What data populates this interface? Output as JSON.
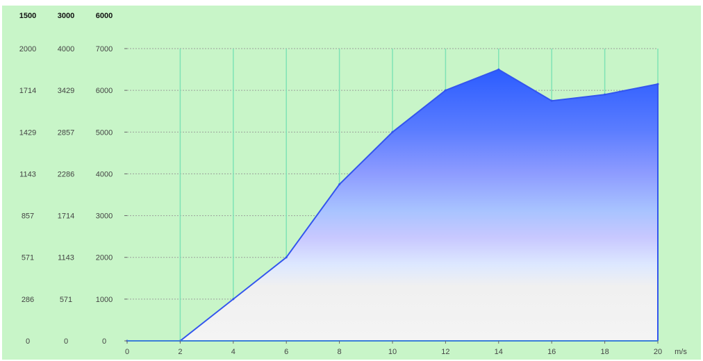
{
  "chart_data": {
    "type": "area",
    "x": [
      0,
      2,
      4,
      6,
      8,
      10,
      12,
      14,
      16,
      18,
      20
    ],
    "values": [
      0,
      0,
      1000,
      2000,
      3750,
      5000,
      6000,
      6500,
      5750,
      5900,
      6150
    ],
    "xlabel": "m/s",
    "ylim": [
      0,
      7000
    ],
    "x_ticks": [
      "0",
      "2",
      "4",
      "6",
      "8",
      "10",
      "12",
      "14",
      "16",
      "18",
      "20"
    ],
    "y_axes": [
      {
        "header": "1500",
        "ticks": [
          "0",
          "286",
          "571",
          "857",
          "1143",
          "1429",
          "1714",
          "2000"
        ]
      },
      {
        "header": "3000",
        "ticks": [
          "0",
          "571",
          "1143",
          "1714",
          "2286",
          "2857",
          "3429",
          "4000"
        ]
      },
      {
        "header": "6000",
        "ticks": [
          "0",
          "1000",
          "2000",
          "3000",
          "4000",
          "5000",
          "6000",
          "7000"
        ]
      }
    ],
    "grid": true,
    "colors": {
      "background": "#c8f5c8",
      "line": "#3355ee",
      "grid_vertical": "#7fe3b5",
      "grid_horizontal": "#9aa09a",
      "fill_top": "#2b5cff",
      "fill_bottom": "#f2f2f2"
    }
  }
}
